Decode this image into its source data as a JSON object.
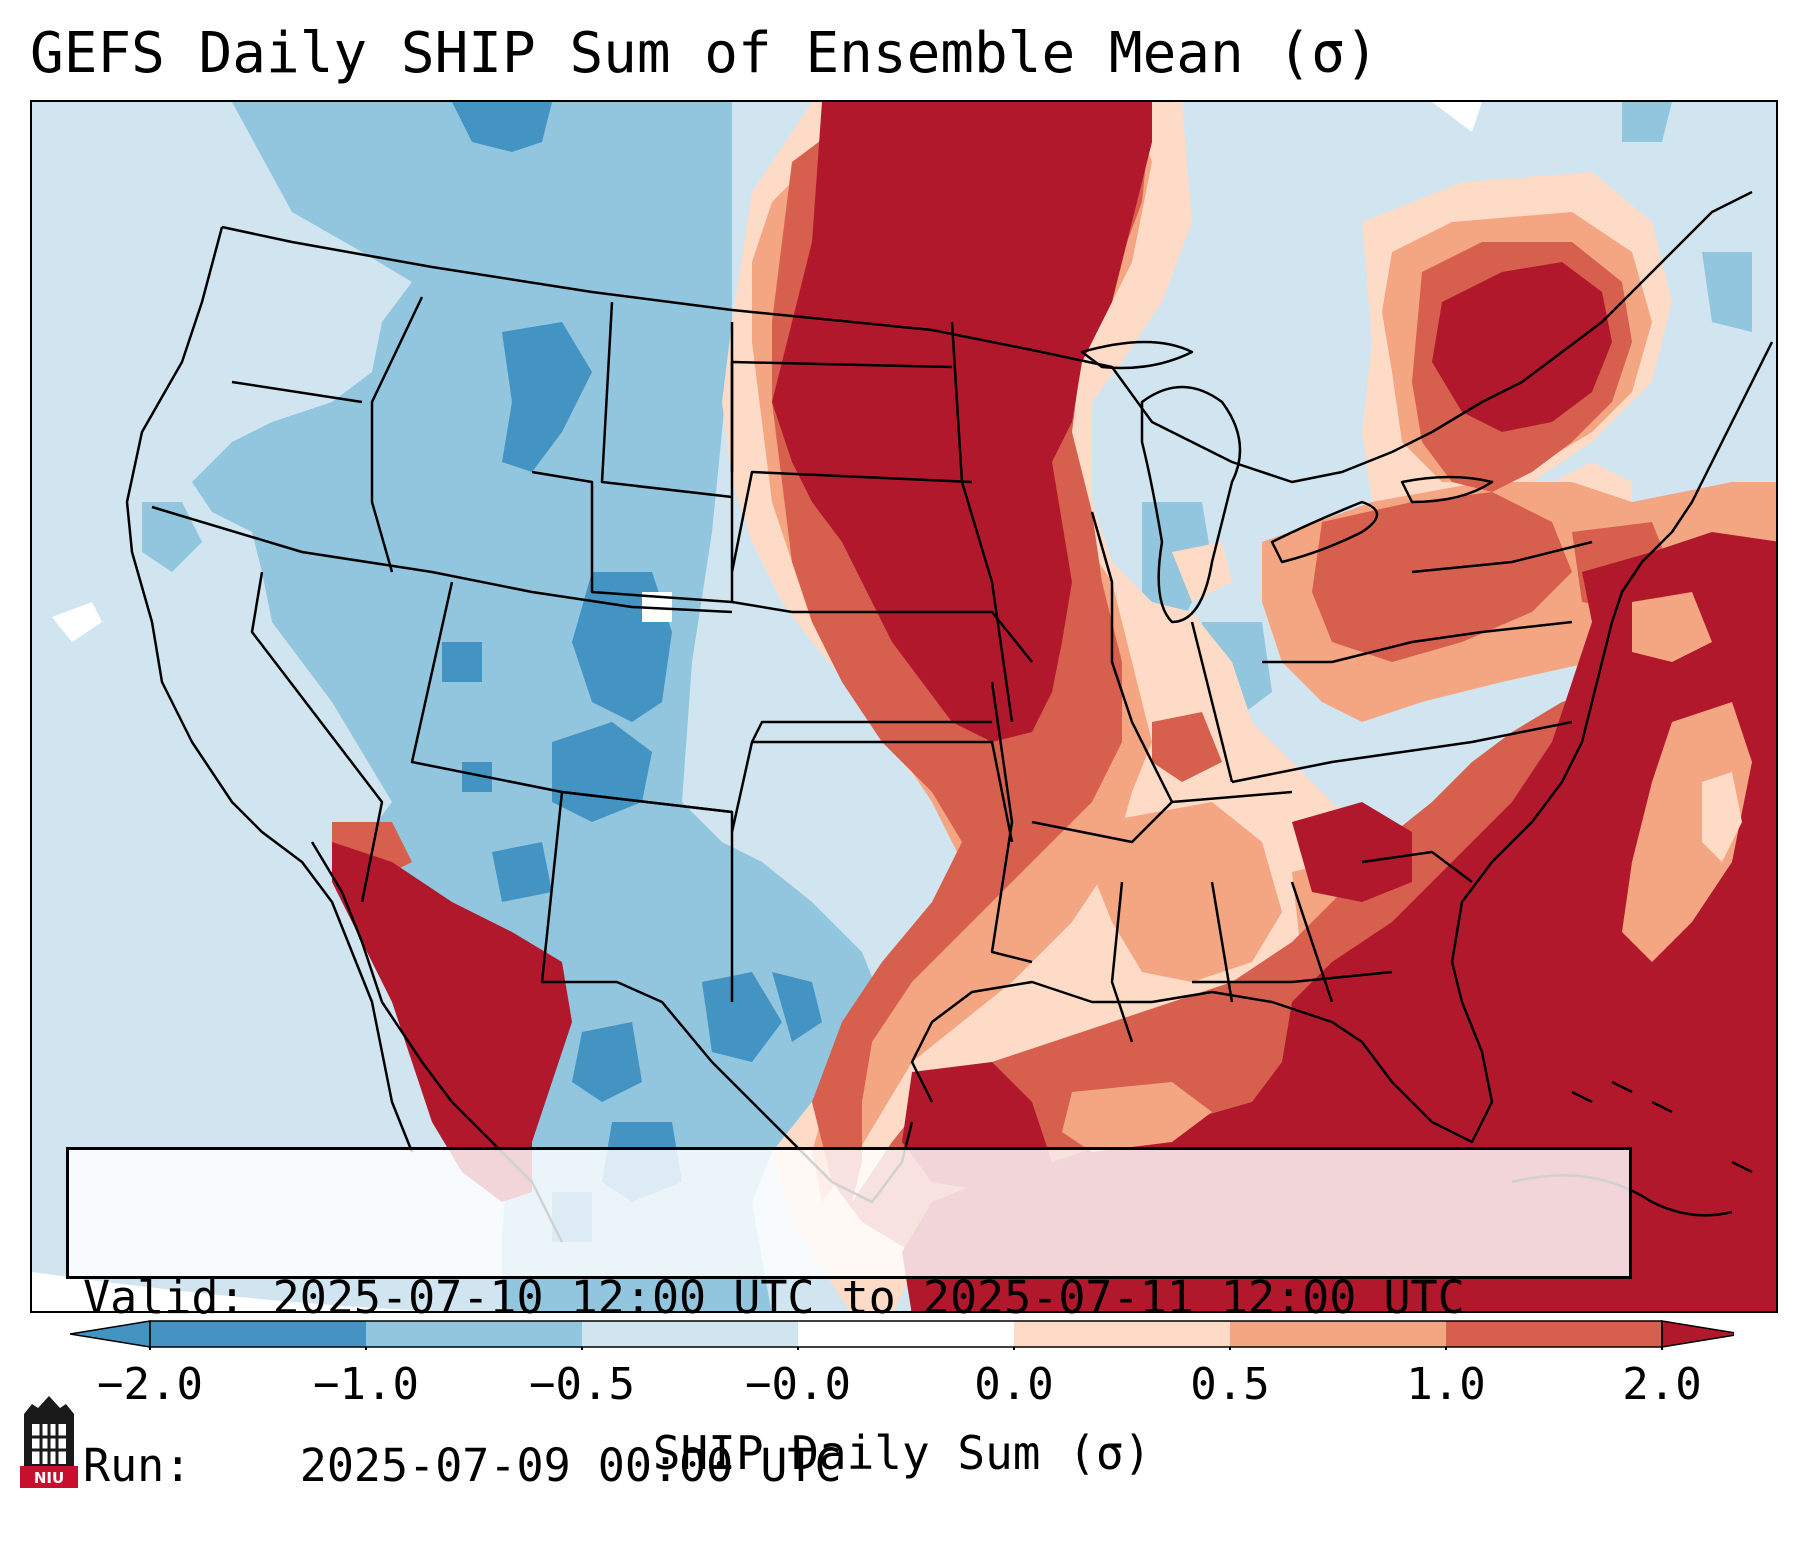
{
  "title": "GEFS Daily SHIP Sum of Ensemble Mean (σ)",
  "info": {
    "valid_label": "Valid:",
    "valid_value": "2025-07-10 12:00 UTC to 2025-07-11 12:00 UTC",
    "run_label": "Run:",
    "run_value": "2025-07-09 00:00 UTC"
  },
  "colorbar": {
    "label": "SHIP Daily Sum (σ)",
    "ticks": [
      "−2.0",
      "−1.0",
      "−0.5",
      "−0.0",
      "0.0",
      "0.5",
      "1.0",
      "2.0"
    ],
    "colors": [
      "#4393c3",
      "#92c5de",
      "#d1e5f0",
      "#ffffff",
      "#fddbc7",
      "#f4a582",
      "#d6604d",
      "#b2182b"
    ],
    "extend": "both"
  },
  "logo": {
    "text": "NIU"
  },
  "colors": {
    "deep_blue": "#4393c3",
    "mid_blue": "#92c5de",
    "light_blue": "#d1e5f0",
    "light_peach": "#fddbc7",
    "salmon": "#f4a582",
    "red_orange": "#d6604d",
    "dark_red": "#b2182b"
  }
}
